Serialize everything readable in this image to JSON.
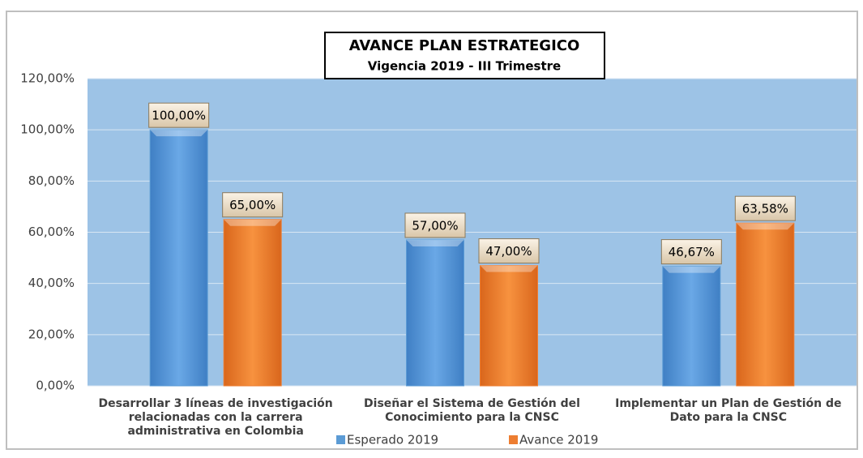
{
  "chart_data": {
    "type": "bar",
    "title": "AVANCE PLAN ESTRATEGICO",
    "subtitle": "Vigencia 2019 - III Trimestre",
    "categories": [
      "Desarrollar 3 líneas de investigación relacionadas con la carrera administrativa en Colombia",
      "Diseñar el Sistema de Gestión del Conocimiento para la CNSC",
      "Implementar un Plan de Gestión de Dato para la CNSC"
    ],
    "series": [
      {
        "name": "Esperado 2019",
        "color": "#5b9bd5",
        "values": [
          100,
          57,
          46.67
        ],
        "value_labels": [
          "100,00%",
          "57,00%",
          "46,67%"
        ]
      },
      {
        "name": "Avance 2019",
        "color": "#ed7d31",
        "values": [
          65,
          47,
          63.58
        ],
        "value_labels": [
          "65,00%",
          "47,00%",
          "63,58%"
        ]
      }
    ],
    "ylim": [
      0,
      120
    ],
    "yticks": [
      {
        "value": 0,
        "label": "0,00%"
      },
      {
        "value": 20,
        "label": "20,00%"
      },
      {
        "value": 40,
        "label": "40,00%"
      },
      {
        "value": 60,
        "label": "60,00%"
      },
      {
        "value": 80,
        "label": "80,00%"
      },
      {
        "value": 100,
        "label": "100,00%"
      },
      {
        "value": 120,
        "label": "120,00%"
      }
    ],
    "grid": true
  }
}
